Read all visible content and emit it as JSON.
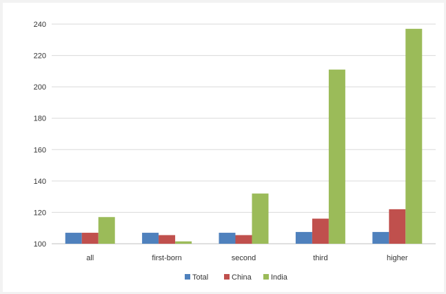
{
  "chart_data": {
    "type": "bar",
    "categories": [
      "all",
      "first-born",
      "second",
      "third",
      "higher"
    ],
    "series": [
      {
        "name": "Total",
        "values": [
          107,
          107,
          107,
          107.5,
          107.5
        ],
        "color": "#4f81bd"
      },
      {
        "name": "China",
        "values": [
          107,
          105.5,
          105.5,
          116,
          122
        ],
        "color": "#c0504d"
      },
      {
        "name": "India",
        "values": [
          117,
          101.5,
          132,
          211,
          237
        ],
        "color": "#9bbb59"
      }
    ],
    "ylim": [
      100,
      240
    ],
    "yticks": [
      100,
      120,
      140,
      160,
      180,
      200,
      220,
      240
    ],
    "grid": true,
    "legend": "bottom-center",
    "title": "",
    "xlabel": "",
    "ylabel": ""
  }
}
